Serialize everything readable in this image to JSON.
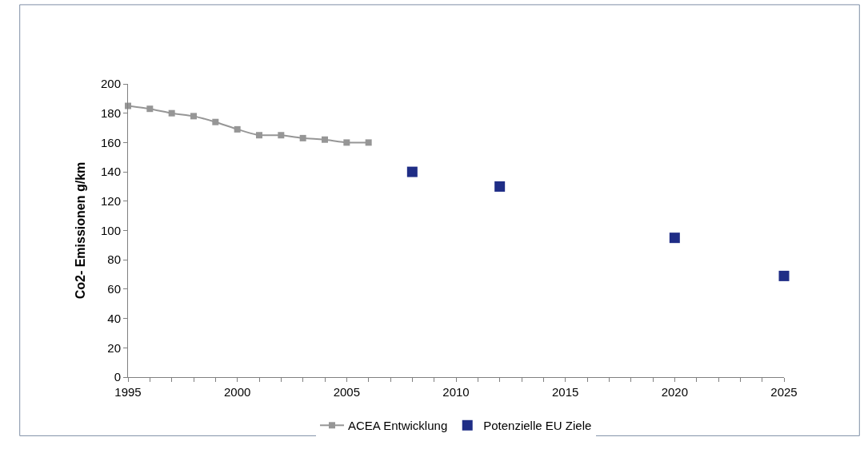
{
  "chart_data": {
    "type": "line",
    "ylabel": "Co2- Emissionen g/km",
    "xlim": [
      1995,
      2025
    ],
    "ylim": [
      0,
      200
    ],
    "xticks": [
      1995,
      {
        "value": 1996,
        "label": null
      },
      {
        "value": 1997,
        "label": null
      },
      {
        "value": 1998,
        "label": null
      },
      {
        "value": 1999,
        "label": null
      },
      2000,
      {
        "value": 2001,
        "label": null
      },
      {
        "value": 2002,
        "label": null
      },
      {
        "value": 2003,
        "label": null
      },
      {
        "value": 2004,
        "label": null
      },
      2005,
      {
        "value": 2006,
        "label": null
      },
      {
        "value": 2007,
        "label": null
      },
      {
        "value": 2008,
        "label": null
      },
      {
        "value": 2009,
        "label": null
      },
      2010,
      {
        "value": 2011,
        "label": null
      },
      {
        "value": 2012,
        "label": null
      },
      {
        "value": 2013,
        "label": null
      },
      {
        "value": 2014,
        "label": null
      },
      2015,
      {
        "value": 2016,
        "label": null
      },
      {
        "value": 2017,
        "label": null
      },
      {
        "value": 2018,
        "label": null
      },
      {
        "value": 2019,
        "label": null
      },
      2020,
      {
        "value": 2021,
        "label": null
      },
      {
        "value": 2022,
        "label": null
      },
      {
        "value": 2023,
        "label": null
      },
      {
        "value": 2024,
        "label": null
      },
      2025
    ],
    "yticks": [
      0,
      20,
      40,
      60,
      80,
      100,
      120,
      140,
      160,
      180,
      200
    ],
    "legend": "bottom",
    "marker": "square",
    "series": [
      {
        "name": "ACEA Entwicklung",
        "color": "#969696",
        "x": [
          1995,
          1996,
          1997,
          1998,
          1999,
          2000,
          2001,
          2002,
          2003,
          2004,
          2005,
          2006
        ],
        "values": [
          185,
          183,
          180,
          178,
          174,
          169,
          165,
          165,
          163,
          162,
          160,
          160
        ]
      },
      {
        "name": "Potenzielle EU Ziele",
        "type": "scatter",
        "color": "#1f2d86",
        "x": [
          2008,
          2012,
          2020,
          2025
        ],
        "values": [
          140,
          130,
          95,
          69
        ]
      }
    ]
  }
}
